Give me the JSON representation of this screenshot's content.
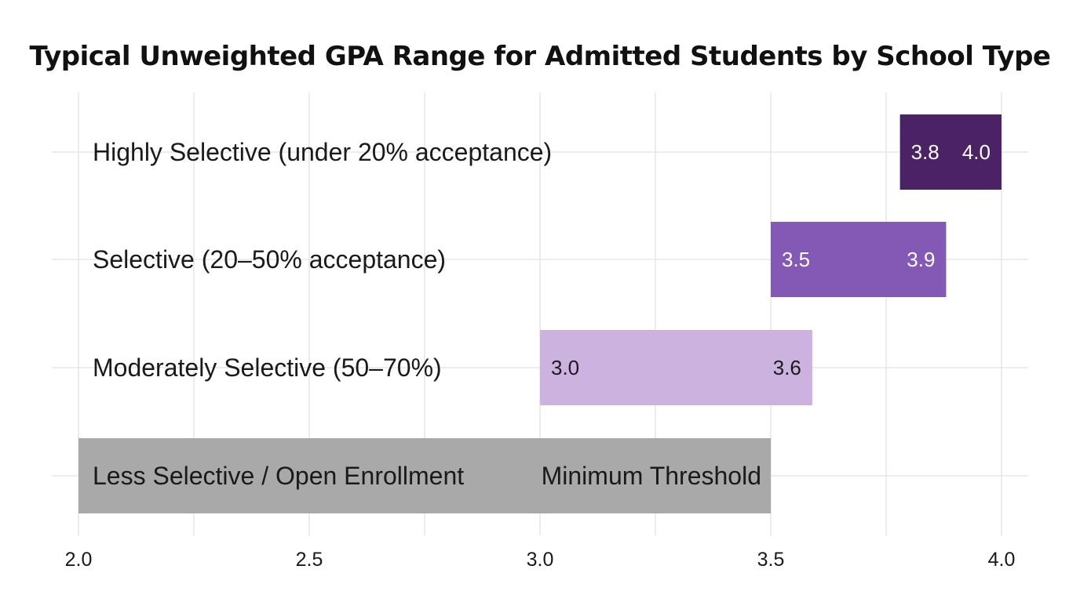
{
  "chart_data": {
    "type": "bar",
    "orientation": "horizontal",
    "title": "Typical Unweighted GPA Range for Admitted Students by School Type",
    "xlabel": "",
    "ylabel": "",
    "xlim": [
      2.0,
      4.0
    ],
    "x_ticks": [
      "2.0",
      "2.5",
      "3.0",
      "3.5",
      "4.0"
    ],
    "grid": true,
    "legend": "none",
    "categories": [
      "Highly Selective (under 20% acceptance)",
      "Selective (20–50% acceptance)",
      "Moderately Selective (50–70%)",
      "Less Selective / Open Enrollment"
    ],
    "ranges": [
      {
        "low": 3.78,
        "high": 4.0,
        "color": "#4b2266",
        "label_color": "#ffffff",
        "labels": [
          "3.8",
          "4.0"
        ]
      },
      {
        "low": 3.5,
        "high": 3.88,
        "color": "#8359b5",
        "label_color": "#ffffff",
        "labels": [
          "3.5",
          "3.9"
        ]
      },
      {
        "low": 3.0,
        "high": 3.59,
        "color": "#cbb2df",
        "label_color": "#1a1a1a",
        "labels": [
          "3.0",
          "3.6"
        ]
      },
      {
        "low": 2.0,
        "high": 3.5,
        "color": "#a9a9a9",
        "label_color": "#1a1a1a",
        "labels": [
          "Minimum Threshold"
        ]
      }
    ]
  }
}
